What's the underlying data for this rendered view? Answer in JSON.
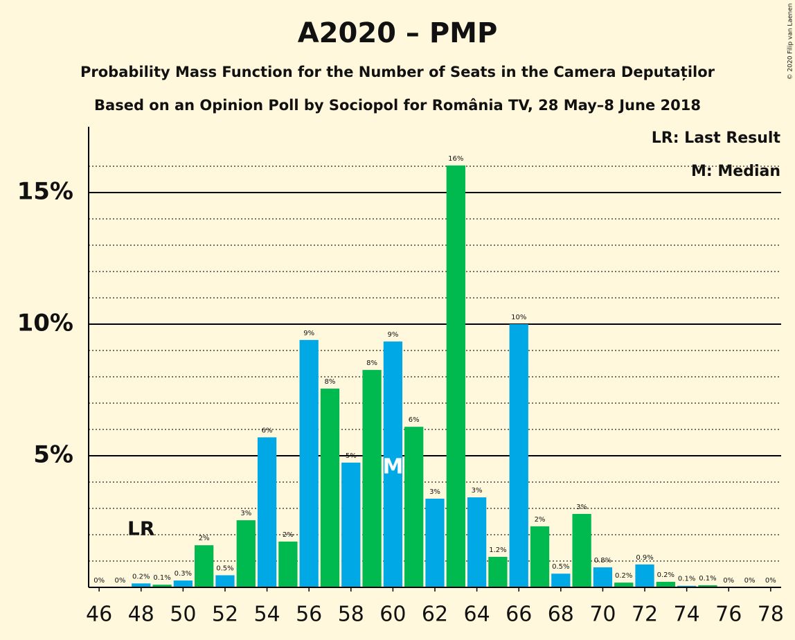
{
  "chart_data": {
    "type": "bar",
    "title": "A2020 – PMP",
    "subtitle": "Probability Mass Function for the Number of Seats in the Camera Deputaților",
    "subtitle2": "Based on an Opinion Poll by Sociopol for România TV, 28 May–8 June 2018",
    "credit": "© 2020 Filip van Laenen",
    "notes": [
      "LR: Last Result",
      "M: Median"
    ],
    "annotations": [
      {
        "text": "LR",
        "x": 48
      },
      {
        "text": "M",
        "x": 60
      }
    ],
    "x": [
      46,
      47,
      48,
      49,
      50,
      51,
      52,
      53,
      54,
      55,
      56,
      57,
      58,
      59,
      60,
      61,
      62,
      63,
      64,
      65,
      66,
      67,
      68,
      69,
      70,
      71,
      72,
      73,
      74,
      75,
      76,
      77,
      78
    ],
    "values": [
      0,
      0,
      0.15,
      0.1,
      0.26,
      1.6,
      0.46,
      2.55,
      5.7,
      1.74,
      9.4,
      7.55,
      4.74,
      8.26,
      9.34,
      6.1,
      3.37,
      16.03,
      3.42,
      1.16,
      10.0,
      2.32,
      0.52,
      2.79,
      0.76,
      0.18,
      0.87,
      0.21,
      0.06,
      0.08,
      0,
      0,
      0
    ],
    "value_labels": [
      "0%",
      "0%",
      "0.2%",
      "0.1%",
      "0.3%",
      "2%",
      "0.5%",
      "3%",
      "6%",
      "2%",
      "9%",
      "8%",
      "5%",
      "8%",
      "9%",
      "6%",
      "3%",
      "16%",
      "3%",
      "1.2%",
      "10%",
      "2%",
      "0.5%",
      "3%",
      "0.8%",
      "0.2%",
      "0.9%",
      "0.2%",
      "0.1%",
      "0.1%",
      "0%",
      "0%",
      "0%"
    ],
    "bar_colors": [
      "#00b050",
      "#00a9e5",
      "#00a9e5",
      "#00b94f",
      "#00a9e5",
      "#00b94f",
      "#00a9e5",
      "#00b94f",
      "#00a9e5",
      "#00b94f",
      "#00a9e5",
      "#00b94f",
      "#00a9e5",
      "#00b94f",
      "#00a9e5",
      "#00b94f",
      "#00a9e5",
      "#00b94f",
      "#00a9e5",
      "#00b94f",
      "#00a9e5",
      "#00b94f",
      "#00a9e5",
      "#00b94f",
      "#00a9e5",
      "#00b94f",
      "#00a9e5",
      "#00b94f",
      "#00a9e5",
      "#00b94f",
      "#00a9e5",
      "#00b94f",
      "#00a9e5"
    ],
    "xlim": [
      45.5,
      78.5
    ],
    "xticks": [
      46,
      48,
      50,
      52,
      54,
      56,
      58,
      60,
      62,
      64,
      66,
      68,
      70,
      72,
      74,
      76,
      78
    ],
    "ylim": [
      0,
      17.5
    ],
    "yticks": [
      {
        "value": 5,
        "label": "5%"
      },
      {
        "value": 10,
        "label": "10%"
      },
      {
        "value": 15,
        "label": "15%"
      }
    ],
    "minor_yticks": [
      1,
      2,
      3,
      4,
      6,
      7,
      8,
      9,
      11,
      12,
      13,
      14,
      16
    ],
    "grid": true
  }
}
